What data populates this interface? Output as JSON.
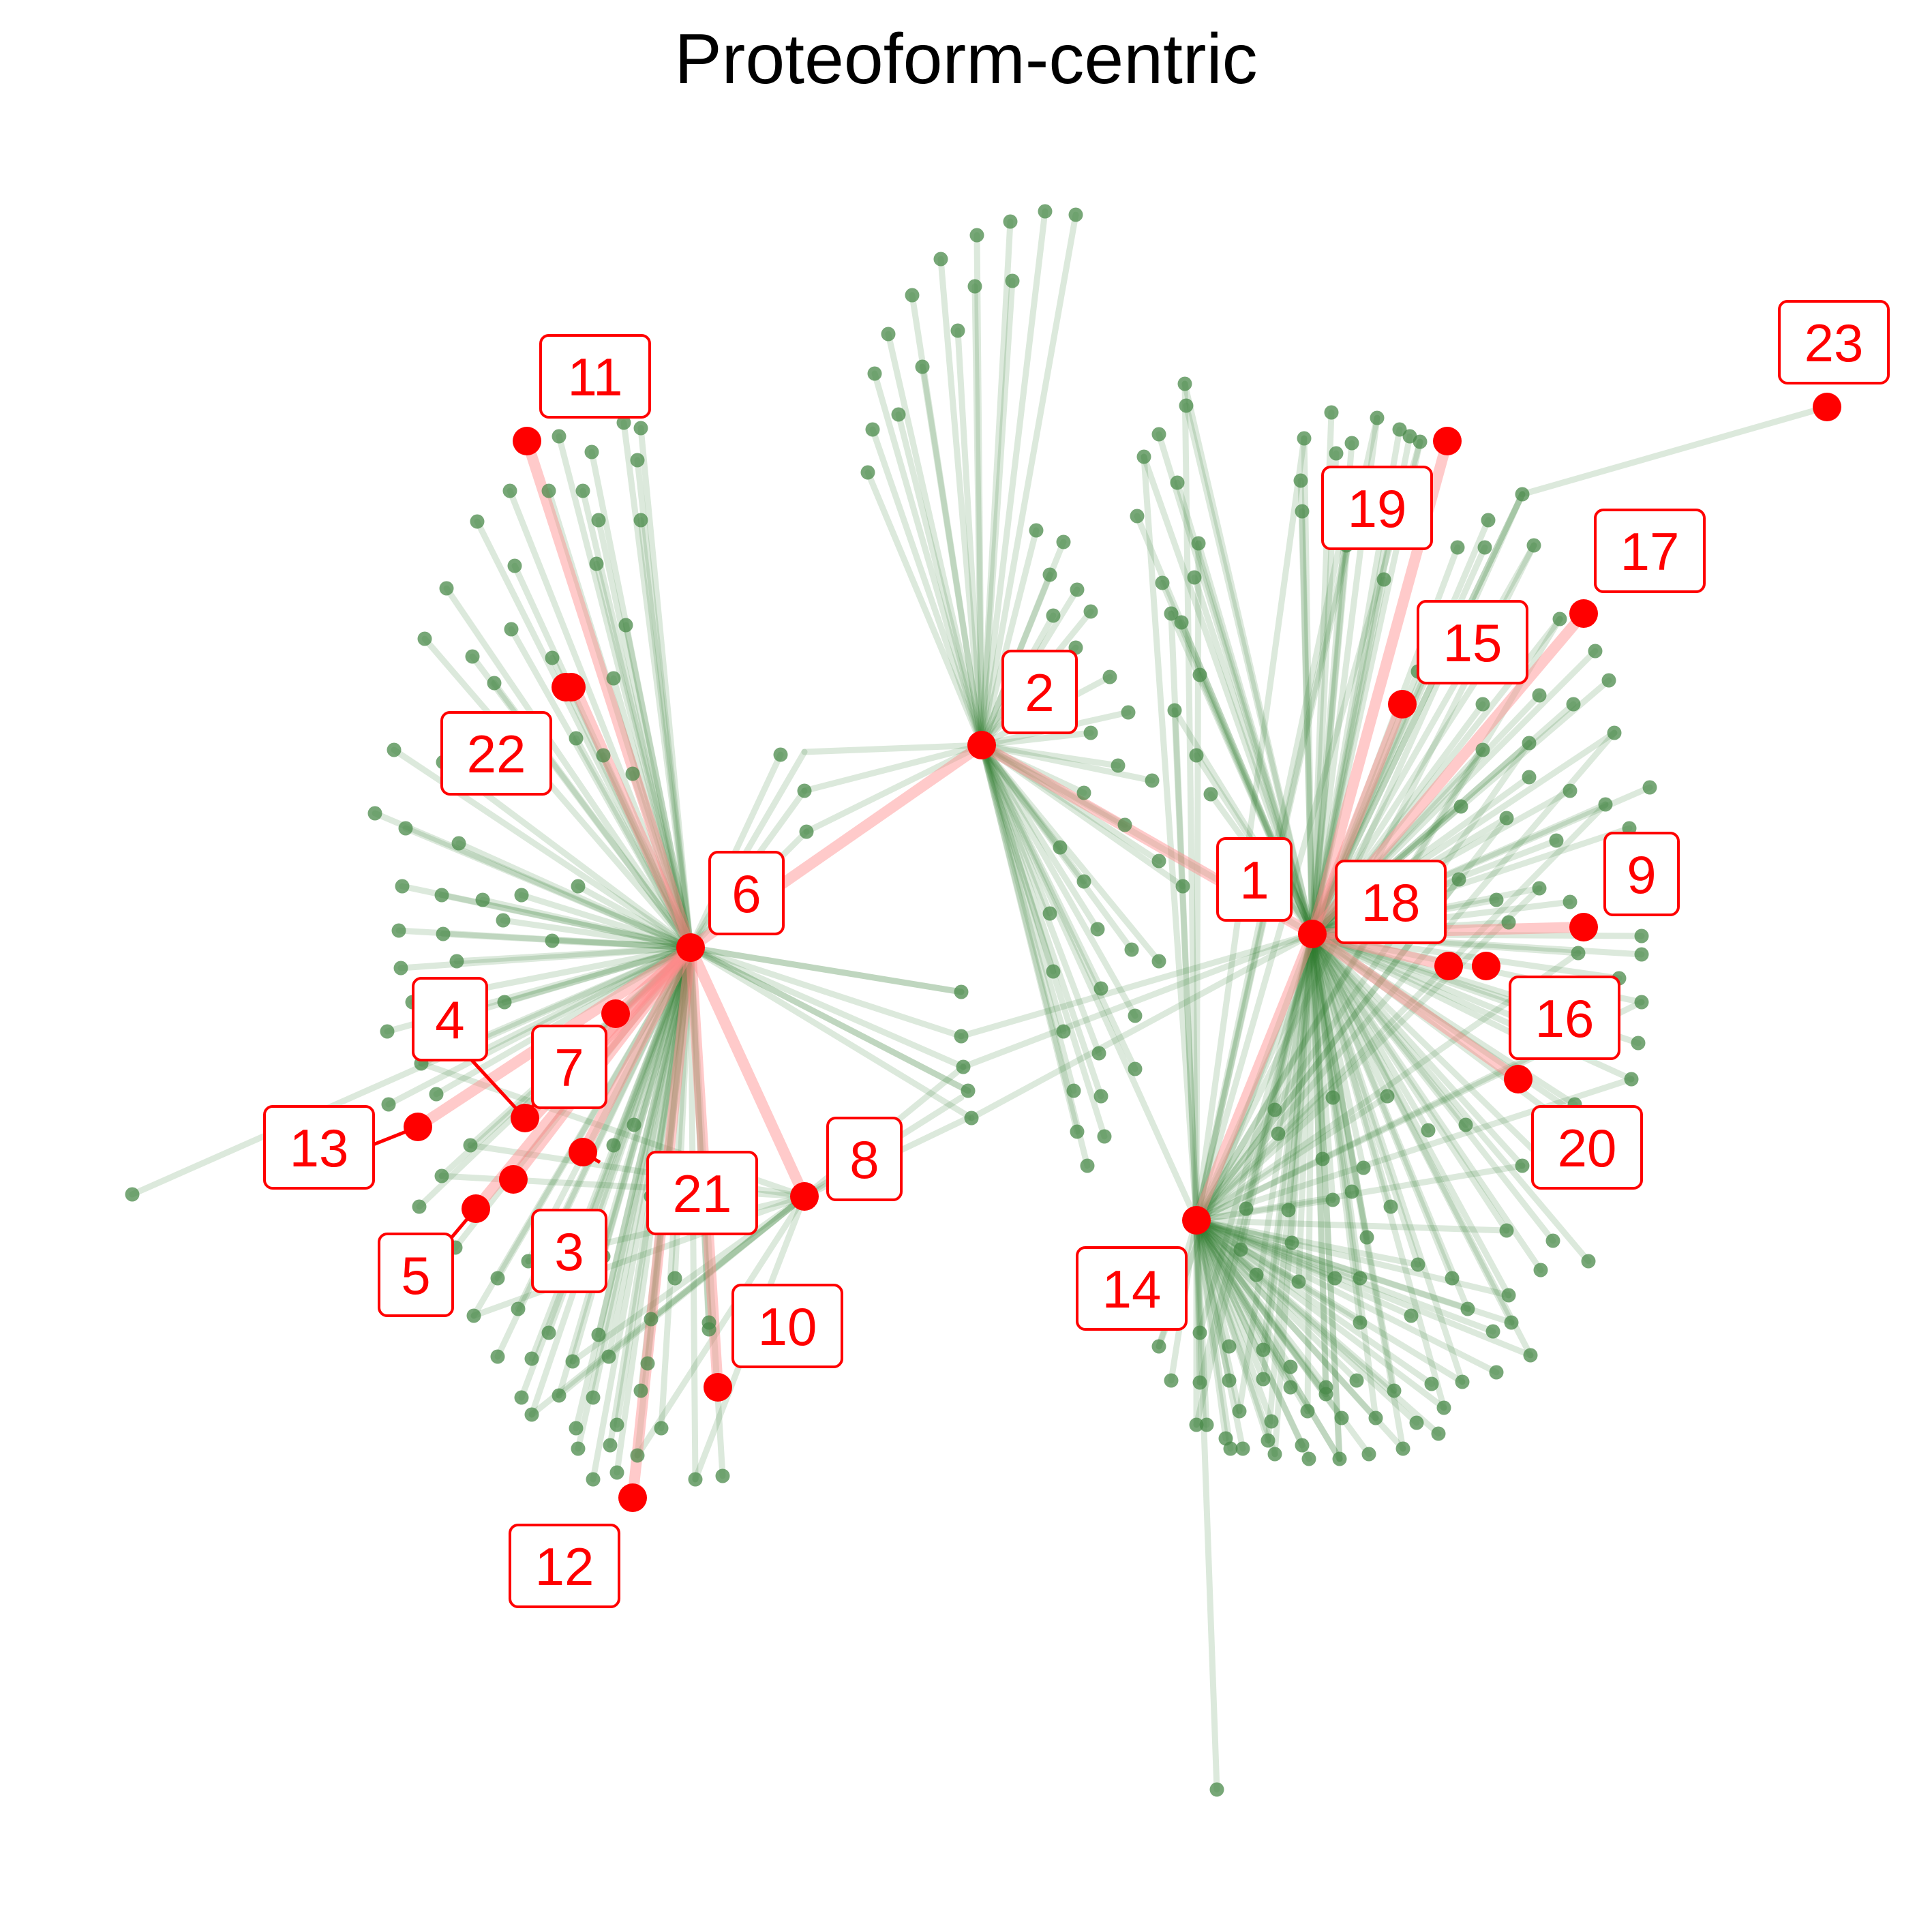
{
  "title": "Proteoform-centric",
  "colors": {
    "edge_normal": "#2e7d32",
    "edge_highlight": "#ff8a8a",
    "node_normal": "#4a8a4a",
    "node_highlight": "#ff0000",
    "label_text": "#ff0000",
    "label_border": "#ff0000",
    "label_fill": "#ffffff"
  },
  "labeled_nodes": [
    {
      "id": "1",
      "label": "1"
    },
    {
      "id": "2",
      "label": "2"
    },
    {
      "id": "3",
      "label": "3"
    },
    {
      "id": "4",
      "label": "4"
    },
    {
      "id": "5",
      "label": "5"
    },
    {
      "id": "6",
      "label": "6"
    },
    {
      "id": "7",
      "label": "7"
    },
    {
      "id": "8",
      "label": "8"
    },
    {
      "id": "9",
      "label": "9"
    },
    {
      "id": "10",
      "label": "10"
    },
    {
      "id": "11",
      "label": "11"
    },
    {
      "id": "12",
      "label": "12"
    },
    {
      "id": "13",
      "label": "13"
    },
    {
      "id": "14",
      "label": "14"
    },
    {
      "id": "15",
      "label": "15"
    },
    {
      "id": "16",
      "label": "16"
    },
    {
      "id": "17",
      "label": "17"
    },
    {
      "id": "18",
      "label": "18"
    },
    {
      "id": "19",
      "label": "19"
    },
    {
      "id": "20",
      "label": "20"
    },
    {
      "id": "21",
      "label": "21"
    },
    {
      "id": "22",
      "label": "22"
    },
    {
      "id": "23",
      "label": "23"
    }
  ]
}
